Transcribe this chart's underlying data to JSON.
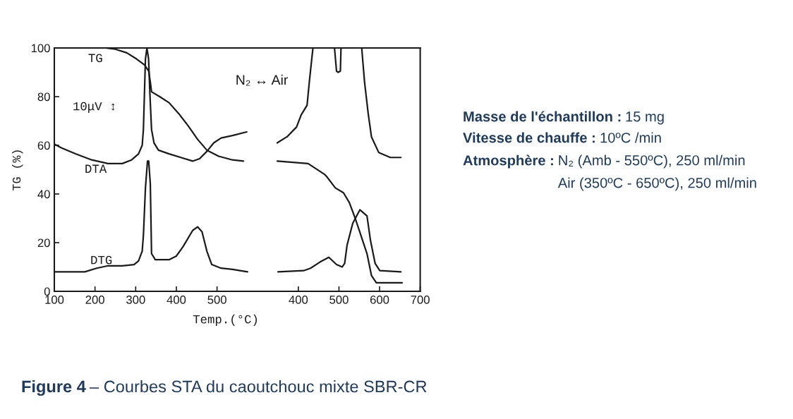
{
  "chart_data": [
    {
      "type": "line",
      "xlabel": "Temp.(°C)",
      "ylabel": "TG (%)",
      "xlim": [
        100,
        600
      ],
      "xticks": [
        100,
        200,
        300,
        400,
        500
      ],
      "ylim": [
        0,
        100
      ],
      "yticks": [
        0,
        20,
        40,
        60,
        80,
        100
      ],
      "annotations": [
        "10μV ↕",
        "N₂ ↔ Air"
      ],
      "series": [
        {
          "name": "TG",
          "color": "#1a1a1a",
          "x": [
            100,
            226,
            250,
            278,
            302,
            322,
            332,
            336,
            339,
            359,
            382,
            406,
            429,
            452,
            475,
            504,
            538,
            565
          ],
          "values": [
            100,
            100,
            99.5,
            98,
            95.5,
            93,
            90.5,
            86,
            82,
            80,
            77.5,
            73,
            68,
            62.5,
            58,
            55.5,
            54,
            53.5
          ]
        },
        {
          "name": "DTA",
          "color": "#1a1a1a",
          "x": [
            100,
            117,
            152,
            192,
            232,
            267,
            290,
            307,
            316,
            319,
            324,
            327.6,
            331.7,
            335,
            339,
            345,
            356,
            382,
            411,
            440,
            457,
            475,
            492,
            510,
            538,
            573
          ],
          "values": [
            60.5,
            59,
            56.5,
            54,
            52.5,
            52.5,
            54,
            56.5,
            60,
            66.5,
            95.5,
            100,
            95.5,
            81,
            66.5,
            61,
            58,
            56.5,
            55,
            53.5,
            54.5,
            57.5,
            61,
            63,
            64,
            65.5
          ]
        },
        {
          "name": "DTG",
          "color": "#1a1a1a",
          "x": [
            100,
            175,
            204,
            232,
            267,
            296,
            307,
            316,
            319,
            324,
            329,
            332,
            336,
            339,
            348,
            382,
            400,
            417,
            440,
            452,
            463,
            475,
            487,
            510,
            538,
            575
          ],
          "values": [
            8,
            8,
            9.5,
            10.5,
            10.5,
            11,
            12.5,
            16.5,
            23,
            42.5,
            53.5,
            53.5,
            44,
            15.5,
            13,
            13,
            14.5,
            18.5,
            25,
            26.5,
            24.5,
            16.5,
            11,
            9.5,
            9,
            8
          ]
        }
      ]
    },
    {
      "type": "line",
      "xlim": [
        300,
        700
      ],
      "xticks": [
        400,
        500,
        600,
        700
      ],
      "ylim": [
        0,
        100
      ],
      "tick_labels": "x",
      "series": [
        {
          "color": "#1a1a1a",
          "x": [
            348,
            424,
            465,
            470.5,
            491,
            511,
            525.5,
            540,
            554,
            569,
            580,
            592,
            655.5
          ],
          "values": [
            53.5,
            52.5,
            48,
            47,
            42.5,
            40.5,
            36.5,
            30,
            23,
            15.5,
            6.5,
            3.5,
            3.5
          ]
        },
        {
          "color": "#1a1a1a",
          "x": [
            348,
            372,
            395.5,
            407,
            421.5,
            427,
            433,
            436,
            489,
            494,
            498,
            503.5,
            505,
            556,
            563,
            572,
            580,
            598,
            626.5,
            652.5
          ],
          "values": [
            61,
            63.5,
            67.5,
            72.5,
            76.5,
            86,
            95.5,
            100,
            100,
            90.5,
            90,
            90.5,
            100,
            100,
            86,
            73,
            63.5,
            57,
            55,
            55
          ]
        },
        {
          "color": "#1a1a1a",
          "x": [
            350,
            413,
            430,
            453,
            475,
            494,
            508,
            514,
            520,
            534,
            551.5,
            569,
            577.5,
            589,
            600.5,
            652.5
          ],
          "values": [
            8,
            8.5,
            9.5,
            12,
            14,
            11,
            10,
            11.5,
            19,
            28,
            33.5,
            31,
            21,
            11.5,
            8.5,
            8
          ]
        }
      ]
    },
    {
      "type": "other",
      "annotations": [
        "Masse de l'échantillon :",
        "15 mg",
        "Vitesse de chauffe :",
        "10ºC /min",
        "Atmosphère :",
        "N₂ (Amb - 550ºC), 250 ml/min",
        "Air (350ºC - 650ºC), 250 ml/min",
        "Figure 4",
        "– Courbes STA du caoutchouc mixte SBR-CR"
      ]
    }
  ]
}
